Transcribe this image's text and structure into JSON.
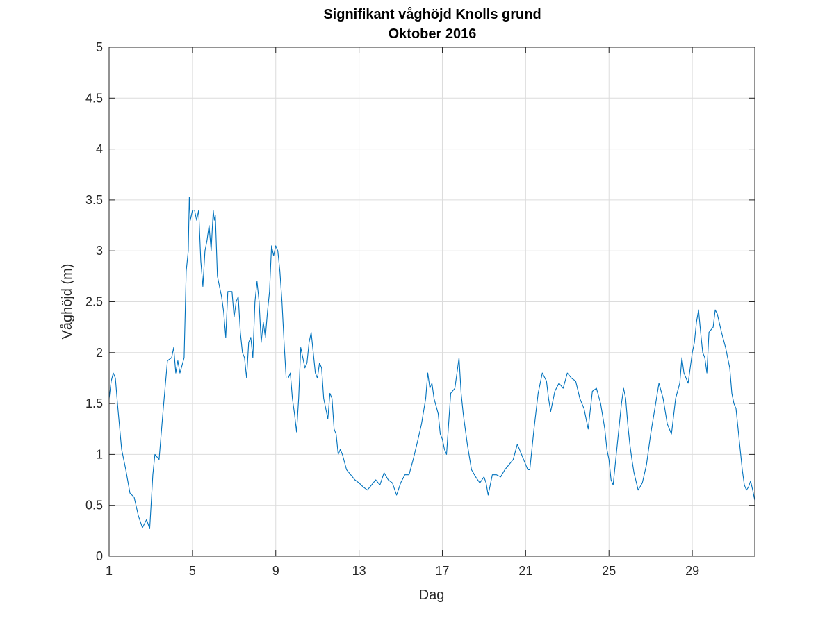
{
  "chart_data": {
    "type": "line",
    "title": [
      "Signifikant våghöjd Knolls grund",
      "Oktober 2016"
    ],
    "xlabel": "Dag",
    "ylabel": "Våghöjd (m)",
    "xlim": [
      1,
      32
    ],
    "ylim": [
      0,
      5
    ],
    "xticks": [
      1,
      5,
      9,
      13,
      17,
      21,
      25,
      29
    ],
    "xtick_labels": [
      "1",
      "5",
      "9",
      "13",
      "17",
      "21",
      "25",
      "29"
    ],
    "yticks": [
      0,
      0.5,
      1,
      1.5,
      2,
      2.5,
      3,
      3.5,
      4,
      4.5,
      5
    ],
    "ytick_labels": [
      "0",
      "0.5",
      "1",
      "1.5",
      "2",
      "2.5",
      "3",
      "3.5",
      "4",
      "4.5",
      "5"
    ],
    "grid": true,
    "line_color": "#0072bd",
    "series": [
      {
        "values": [
          [
            1.0,
            1.55
          ],
          [
            1.1,
            1.72
          ],
          [
            1.2,
            1.8
          ],
          [
            1.3,
            1.75
          ],
          [
            1.4,
            1.5
          ],
          [
            1.6,
            1.05
          ],
          [
            1.8,
            0.85
          ],
          [
            2.0,
            0.62
          ],
          [
            2.2,
            0.58
          ],
          [
            2.4,
            0.4
          ],
          [
            2.6,
            0.28
          ],
          [
            2.8,
            0.36
          ],
          [
            2.95,
            0.27
          ],
          [
            3.1,
            0.8
          ],
          [
            3.2,
            1.0
          ],
          [
            3.4,
            0.95
          ],
          [
            3.6,
            1.45
          ],
          [
            3.8,
            1.92
          ],
          [
            4.0,
            1.95
          ],
          [
            4.1,
            2.05
          ],
          [
            4.2,
            1.8
          ],
          [
            4.3,
            1.92
          ],
          [
            4.4,
            1.8
          ],
          [
            4.6,
            1.95
          ],
          [
            4.7,
            2.8
          ],
          [
            4.8,
            3.0
          ],
          [
            4.85,
            3.53
          ],
          [
            4.9,
            3.3
          ],
          [
            5.0,
            3.4
          ],
          [
            5.1,
            3.4
          ],
          [
            5.2,
            3.3
          ],
          [
            5.3,
            3.4
          ],
          [
            5.4,
            2.9
          ],
          [
            5.5,
            2.65
          ],
          [
            5.6,
            3.0
          ],
          [
            5.7,
            3.1
          ],
          [
            5.8,
            3.25
          ],
          [
            5.9,
            3.0
          ],
          [
            6.0,
            3.4
          ],
          [
            6.05,
            3.3
          ],
          [
            6.1,
            3.35
          ],
          [
            6.2,
            2.75
          ],
          [
            6.4,
            2.55
          ],
          [
            6.5,
            2.4
          ],
          [
            6.6,
            2.15
          ],
          [
            6.7,
            2.6
          ],
          [
            6.8,
            2.6
          ],
          [
            6.9,
            2.6
          ],
          [
            7.0,
            2.35
          ],
          [
            7.1,
            2.5
          ],
          [
            7.2,
            2.55
          ],
          [
            7.3,
            2.2
          ],
          [
            7.4,
            2.0
          ],
          [
            7.5,
            1.95
          ],
          [
            7.6,
            1.75
          ],
          [
            7.7,
            2.1
          ],
          [
            7.8,
            2.15
          ],
          [
            7.9,
            1.95
          ],
          [
            8.0,
            2.5
          ],
          [
            8.1,
            2.7
          ],
          [
            8.2,
            2.5
          ],
          [
            8.3,
            2.1
          ],
          [
            8.4,
            2.3
          ],
          [
            8.5,
            2.15
          ],
          [
            8.6,
            2.4
          ],
          [
            8.7,
            2.6
          ],
          [
            8.8,
            3.05
          ],
          [
            8.9,
            2.95
          ],
          [
            9.0,
            3.05
          ],
          [
            9.1,
            3.0
          ],
          [
            9.2,
            2.8
          ],
          [
            9.3,
            2.5
          ],
          [
            9.4,
            2.1
          ],
          [
            9.5,
            1.75
          ],
          [
            9.6,
            1.75
          ],
          [
            9.7,
            1.8
          ],
          [
            9.8,
            1.55
          ],
          [
            9.9,
            1.4
          ],
          [
            10.0,
            1.22
          ],
          [
            10.1,
            1.55
          ],
          [
            10.2,
            2.05
          ],
          [
            10.3,
            1.95
          ],
          [
            10.4,
            1.85
          ],
          [
            10.5,
            1.9
          ],
          [
            10.6,
            2.1
          ],
          [
            10.7,
            2.2
          ],
          [
            10.8,
            2.0
          ],
          [
            10.9,
            1.8
          ],
          [
            11.0,
            1.75
          ],
          [
            11.1,
            1.9
          ],
          [
            11.2,
            1.85
          ],
          [
            11.3,
            1.55
          ],
          [
            11.4,
            1.45
          ],
          [
            11.5,
            1.35
          ],
          [
            11.6,
            1.6
          ],
          [
            11.7,
            1.55
          ],
          [
            11.8,
            1.25
          ],
          [
            11.9,
            1.2
          ],
          [
            12.0,
            1.0
          ],
          [
            12.1,
            1.05
          ],
          [
            12.2,
            1.0
          ],
          [
            12.4,
            0.85
          ],
          [
            12.6,
            0.8
          ],
          [
            12.8,
            0.75
          ],
          [
            13.0,
            0.72
          ],
          [
            13.2,
            0.68
          ],
          [
            13.4,
            0.65
          ],
          [
            13.6,
            0.7
          ],
          [
            13.8,
            0.75
          ],
          [
            14.0,
            0.7
          ],
          [
            14.2,
            0.82
          ],
          [
            14.4,
            0.75
          ],
          [
            14.6,
            0.72
          ],
          [
            14.8,
            0.6
          ],
          [
            15.0,
            0.72
          ],
          [
            15.2,
            0.8
          ],
          [
            15.4,
            0.8
          ],
          [
            15.6,
            0.95
          ],
          [
            15.8,
            1.12
          ],
          [
            16.0,
            1.3
          ],
          [
            16.2,
            1.55
          ],
          [
            16.3,
            1.8
          ],
          [
            16.4,
            1.65
          ],
          [
            16.5,
            1.7
          ],
          [
            16.6,
            1.55
          ],
          [
            16.8,
            1.4
          ],
          [
            16.9,
            1.2
          ],
          [
            17.0,
            1.15
          ],
          [
            17.1,
            1.05
          ],
          [
            17.2,
            1.0
          ],
          [
            17.3,
            1.3
          ],
          [
            17.4,
            1.6
          ],
          [
            17.6,
            1.65
          ],
          [
            17.7,
            1.8
          ],
          [
            17.8,
            1.95
          ],
          [
            17.9,
            1.6
          ],
          [
            18.0,
            1.4
          ],
          [
            18.2,
            1.1
          ],
          [
            18.4,
            0.85
          ],
          [
            18.6,
            0.78
          ],
          [
            18.8,
            0.72
          ],
          [
            19.0,
            0.78
          ],
          [
            19.1,
            0.72
          ],
          [
            19.2,
            0.6
          ],
          [
            19.4,
            0.8
          ],
          [
            19.6,
            0.8
          ],
          [
            19.8,
            0.78
          ],
          [
            20.0,
            0.85
          ],
          [
            20.2,
            0.9
          ],
          [
            20.4,
            0.95
          ],
          [
            20.6,
            1.1
          ],
          [
            20.8,
            1.0
          ],
          [
            21.0,
            0.9
          ],
          [
            21.1,
            0.85
          ],
          [
            21.2,
            0.85
          ],
          [
            21.4,
            1.25
          ],
          [
            21.6,
            1.6
          ],
          [
            21.8,
            1.8
          ],
          [
            22.0,
            1.72
          ],
          [
            22.1,
            1.55
          ],
          [
            22.2,
            1.42
          ],
          [
            22.4,
            1.62
          ],
          [
            22.6,
            1.7
          ],
          [
            22.8,
            1.65
          ],
          [
            23.0,
            1.8
          ],
          [
            23.2,
            1.75
          ],
          [
            23.4,
            1.72
          ],
          [
            23.6,
            1.55
          ],
          [
            23.8,
            1.45
          ],
          [
            23.9,
            1.35
          ],
          [
            24.0,
            1.25
          ],
          [
            24.2,
            1.62
          ],
          [
            24.4,
            1.65
          ],
          [
            24.6,
            1.5
          ],
          [
            24.8,
            1.25
          ],
          [
            24.9,
            1.05
          ],
          [
            25.0,
            0.95
          ],
          [
            25.1,
            0.75
          ],
          [
            25.2,
            0.7
          ],
          [
            25.4,
            1.1
          ],
          [
            25.6,
            1.5
          ],
          [
            25.7,
            1.65
          ],
          [
            25.8,
            1.55
          ],
          [
            25.9,
            1.3
          ],
          [
            26.0,
            1.1
          ],
          [
            26.1,
            0.95
          ],
          [
            26.2,
            0.82
          ],
          [
            26.4,
            0.65
          ],
          [
            26.6,
            0.72
          ],
          [
            26.8,
            0.9
          ],
          [
            27.0,
            1.2
          ],
          [
            27.2,
            1.45
          ],
          [
            27.4,
            1.7
          ],
          [
            27.6,
            1.55
          ],
          [
            27.8,
            1.3
          ],
          [
            28.0,
            1.2
          ],
          [
            28.2,
            1.55
          ],
          [
            28.4,
            1.7
          ],
          [
            28.5,
            1.95
          ],
          [
            28.6,
            1.8
          ],
          [
            28.8,
            1.7
          ],
          [
            29.0,
            2.0
          ],
          [
            29.1,
            2.1
          ],
          [
            29.2,
            2.3
          ],
          [
            29.3,
            2.42
          ],
          [
            29.4,
            2.2
          ],
          [
            29.5,
            2.0
          ],
          [
            29.6,
            1.95
          ],
          [
            29.7,
            1.8
          ],
          [
            29.8,
            2.2
          ],
          [
            30.0,
            2.25
          ],
          [
            30.1,
            2.42
          ],
          [
            30.2,
            2.38
          ],
          [
            30.4,
            2.2
          ],
          [
            30.6,
            2.05
          ],
          [
            30.8,
            1.85
          ],
          [
            30.9,
            1.6
          ],
          [
            31.0,
            1.5
          ],
          [
            31.1,
            1.45
          ],
          [
            31.2,
            1.25
          ],
          [
            31.4,
            0.85
          ],
          [
            31.5,
            0.7
          ],
          [
            31.6,
            0.65
          ],
          [
            31.7,
            0.68
          ],
          [
            31.8,
            0.74
          ],
          [
            31.9,
            0.65
          ],
          [
            32.0,
            0.55
          ]
        ]
      }
    ]
  }
}
